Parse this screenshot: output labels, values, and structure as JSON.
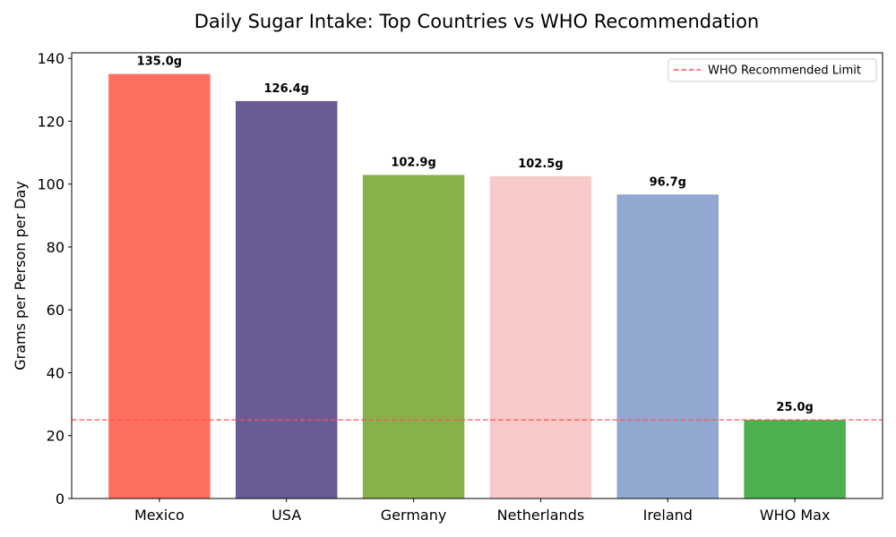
{
  "chart_data": {
    "type": "bar",
    "title": "Daily Sugar Intake: Top Countries vs WHO Recommendation",
    "xlabel": "",
    "ylabel": "Grams per Person per Day",
    "categories": [
      "Mexico",
      "USA",
      "Germany",
      "Netherlands",
      "Ireland",
      "WHO Max"
    ],
    "values": [
      135.0,
      126.4,
      102.9,
      102.5,
      96.7,
      25.0
    ],
    "data_labels": [
      "135.0g",
      "126.4g",
      "102.9g",
      "102.5g",
      "96.7g",
      "25.0g"
    ],
    "colors": [
      "#FF6F61",
      "#6B5B95",
      "#88B04B",
      "#F7CAC9",
      "#92A8D1",
      "#4CAF50"
    ],
    "ylim": [
      0,
      141.75
    ],
    "yticks": [
      0,
      20,
      40,
      60,
      80,
      100,
      120,
      140
    ],
    "reference_line": {
      "label": "WHO Recommended Limit",
      "value": 25,
      "color": "#FF5252",
      "style": "dashed"
    },
    "legend_placement": "top-right",
    "grid": false
  }
}
